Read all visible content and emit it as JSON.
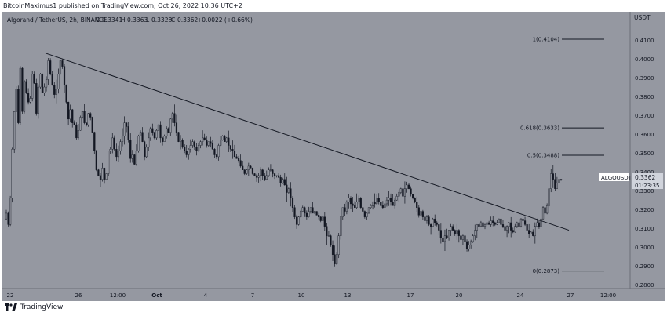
{
  "header": {
    "published": "BitcoinMaximus1 published on TradingView.com, Oct 26, 2022 10:36 UTC+2"
  },
  "legend": {
    "symbol": "Algorand / TetherUS, 2h, BINANCE",
    "o_label": "O",
    "o_value": "0.3341",
    "h_label": "H",
    "h_value": "0.3363",
    "l_label": "L",
    "l_value": "0.3328",
    "c_label": "C",
    "c_value": "0.3362",
    "change": "+0.0022 (+0.66%)"
  },
  "price_scale": {
    "currency": "USDT"
  },
  "last_price": {
    "ticker": "ALGOUSDT",
    "price": "0.3362",
    "countdown": "01:23:35"
  },
  "footer": {
    "brand": "TradingView"
  },
  "colors": {
    "background": "#9598a1",
    "candle": "#131722",
    "trendline": "#131722"
  },
  "chart_data": {
    "type": "candlestick",
    "title": "Algorand / TetherUS, 2h, BINANCE",
    "x_ticks": [
      "22",
      "26",
      "12:00",
      "Oct",
      "4",
      "7",
      "10",
      "13",
      "17",
      "20",
      "24",
      "27",
      "12:00"
    ],
    "y_ticks": [
      "0.4100",
      "0.4000",
      "0.3900",
      "0.3800",
      "0.3700",
      "0.3600",
      "0.3500",
      "0.3400",
      "0.3300",
      "0.3200",
      "0.3100",
      "0.3000",
      "0.2900",
      "0.2800"
    ],
    "y_tick_values": [
      0.41,
      0.4,
      0.39,
      0.38,
      0.37,
      0.36,
      0.35,
      0.34,
      0.33,
      0.32,
      0.31,
      0.3,
      0.29,
      0.28
    ],
    "ylim": [
      0.278,
      0.425
    ],
    "fib_levels": [
      {
        "ratio": "1",
        "price": 0.4104,
        "label": "1(0.4104)"
      },
      {
        "ratio": "0.618",
        "price": 0.3633,
        "label": "0.618(0.3633)"
      },
      {
        "ratio": "0.5",
        "price": 0.3488,
        "label": "0.5(0.3488)"
      },
      {
        "ratio": "0",
        "price": 0.2873,
        "label": "0(0.2873)"
      }
    ],
    "trendline": {
      "start_price": 0.403,
      "end_price": 0.309
    },
    "grid": false,
    "closes": [
      0.318,
      0.312,
      0.326,
      0.352,
      0.372,
      0.384,
      0.366,
      0.395,
      0.372,
      0.388,
      0.382,
      0.377,
      0.379,
      0.392,
      0.387,
      0.371,
      0.385,
      0.392,
      0.382,
      0.385,
      0.389,
      0.399,
      0.392,
      0.386,
      0.381,
      0.384,
      0.392,
      0.399,
      0.396,
      0.386,
      0.377,
      0.368,
      0.373,
      0.366,
      0.365,
      0.358,
      0.362,
      0.369,
      0.372,
      0.366,
      0.365,
      0.371,
      0.369,
      0.361,
      0.351,
      0.341,
      0.338,
      0.336,
      0.342,
      0.336,
      0.339,
      0.351,
      0.352,
      0.358,
      0.352,
      0.348,
      0.351,
      0.356,
      0.359,
      0.366,
      0.364,
      0.357,
      0.347,
      0.349,
      0.344,
      0.351,
      0.359,
      0.361,
      0.356,
      0.348,
      0.353,
      0.358,
      0.363,
      0.361,
      0.358,
      0.362,
      0.365,
      0.358,
      0.356,
      0.359,
      0.363,
      0.361,
      0.368,
      0.371,
      0.366,
      0.361,
      0.356,
      0.357,
      0.353,
      0.351,
      0.349,
      0.352,
      0.354,
      0.356,
      0.353,
      0.351,
      0.354,
      0.356,
      0.358,
      0.357,
      0.354,
      0.356,
      0.355,
      0.352,
      0.349,
      0.348,
      0.354,
      0.357,
      0.359,
      0.356,
      0.358,
      0.354,
      0.352,
      0.351,
      0.348,
      0.347,
      0.346,
      0.343,
      0.341,
      0.339,
      0.341,
      0.343,
      0.342,
      0.339,
      0.338,
      0.337,
      0.338,
      0.341,
      0.338,
      0.336,
      0.338,
      0.341,
      0.341,
      0.339,
      0.338,
      0.338,
      0.337,
      0.334,
      0.336,
      0.333,
      0.329,
      0.331,
      0.326,
      0.321,
      0.316,
      0.312,
      0.316,
      0.319,
      0.321,
      0.318,
      0.316,
      0.319,
      0.321,
      0.318,
      0.319,
      0.317,
      0.316,
      0.314,
      0.316,
      0.311,
      0.306,
      0.306,
      0.301,
      0.296,
      0.291,
      0.296,
      0.306,
      0.316,
      0.321,
      0.319,
      0.324,
      0.326,
      0.323,
      0.322,
      0.321,
      0.324,
      0.326,
      0.321,
      0.319,
      0.316,
      0.318,
      0.321,
      0.322,
      0.324,
      0.323,
      0.326,
      0.324,
      0.322,
      0.321,
      0.323,
      0.325,
      0.326,
      0.324,
      0.322,
      0.325,
      0.327,
      0.329,
      0.331,
      0.327,
      0.331,
      0.333,
      0.331,
      0.328,
      0.326,
      0.324,
      0.321,
      0.317,
      0.319,
      0.316,
      0.314,
      0.316,
      0.312,
      0.311,
      0.315,
      0.313,
      0.312,
      0.309,
      0.305,
      0.303,
      0.306,
      0.305,
      0.309,
      0.311,
      0.309,
      0.307,
      0.309,
      0.306,
      0.304,
      0.306,
      0.303,
      0.299,
      0.301,
      0.303,
      0.306,
      0.309,
      0.312,
      0.311,
      0.313,
      0.311,
      0.312,
      0.313,
      0.312,
      0.314,
      0.313,
      0.312,
      0.313,
      0.315,
      0.312,
      0.311,
      0.309,
      0.311,
      0.313,
      0.309,
      0.308,
      0.311,
      0.313,
      0.311,
      0.315,
      0.314,
      0.312,
      0.309,
      0.307,
      0.308,
      0.306,
      0.311,
      0.313,
      0.311,
      0.315,
      0.321,
      0.318,
      0.322,
      0.331,
      0.339,
      0.336,
      0.331,
      0.334,
      0.336,
      0.3362
    ]
  }
}
